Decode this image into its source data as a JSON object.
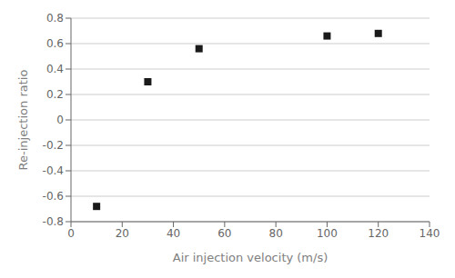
{
  "chart_data": {
    "type": "scatter",
    "x": [
      10,
      30,
      50,
      100,
      120
    ],
    "y": [
      -0.68,
      0.3,
      0.56,
      0.66,
      0.68
    ],
    "xlabel": "Air injection velocity (m/s)",
    "ylabel": "Re-injection ratio",
    "xlim": [
      0,
      140
    ],
    "ylim": [
      -0.8,
      0.8
    ],
    "xticks": [
      0,
      20,
      40,
      60,
      80,
      100,
      120,
      140
    ],
    "yticks": [
      -0.8,
      -0.6,
      -0.4,
      -0.2,
      0,
      0.2,
      0.4,
      0.6,
      0.8
    ],
    "marker": "square",
    "color": "#1a1a1a",
    "grid": true
  }
}
